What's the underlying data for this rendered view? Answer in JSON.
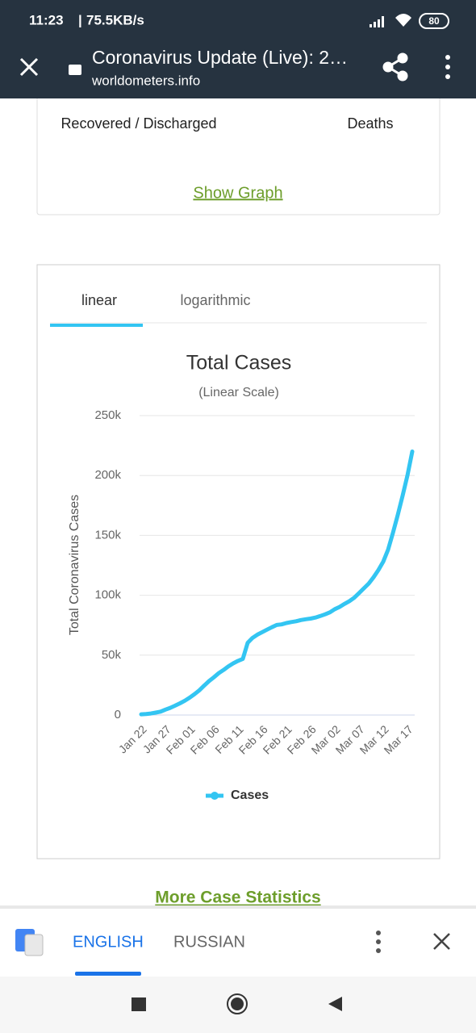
{
  "status_bar": {
    "time": "11:23",
    "speed": "75.5KB/s",
    "battery": "80"
  },
  "browser": {
    "title": "Coronavirus Update (Live): 2…",
    "url": "worldometers.info"
  },
  "stats": {
    "recovered_label": "Recovered / Discharged",
    "deaths_label": "Deaths",
    "show_graph": "Show Graph"
  },
  "tabs": [
    "linear",
    "logarithmic"
  ],
  "chart_data": {
    "type": "line",
    "title": "Total Cases",
    "subtitle": "(Linear Scale)",
    "y_label": "Total Coronavirus Cases",
    "categories": [
      "Jan 22",
      null,
      null,
      null,
      null,
      "Jan 27",
      null,
      null,
      null,
      null,
      "Feb 01",
      null,
      null,
      null,
      null,
      "Feb 06",
      null,
      null,
      null,
      null,
      "Feb 11",
      null,
      null,
      null,
      null,
      "Feb 16",
      null,
      null,
      null,
      null,
      "Feb 21",
      null,
      null,
      null,
      null,
      "Feb 26",
      null,
      null,
      null,
      null,
      "Mar 02",
      null,
      null,
      null,
      null,
      "Mar 07",
      null,
      null,
      null,
      null,
      "Mar 12",
      null,
      null,
      null,
      null,
      "Mar 17",
      null
    ],
    "series": [
      {
        "name": "Cases",
        "color": "#33c5f2",
        "values": [
          580,
          850,
          1300,
          2000,
          2800,
          4500,
          6000,
          7800,
          9800,
          11900,
          14500,
          17400,
          20600,
          24500,
          28300,
          31500,
          34900,
          37600,
          40600,
          43100,
          45200,
          46900,
          60300,
          64400,
          67100,
          69200,
          71300,
          73300,
          75200,
          75700,
          76800,
          77600,
          78300,
          79300,
          80000,
          80500,
          81400,
          82700,
          84100,
          85800,
          88400,
          90300,
          92800,
          95100,
          97900,
          101800,
          105800,
          109800,
          115000,
          121000,
          128000,
          138000,
          152000,
          167000,
          183000,
          200000,
          220000
        ]
      }
    ],
    "ylim": [
      0,
      250000
    ],
    "yticks": [
      0,
      {
        "value": 50000,
        "label": "50k"
      },
      {
        "value": 100000,
        "label": "100k"
      },
      {
        "value": 150000,
        "label": "150k"
      },
      {
        "value": 200000,
        "label": "200k"
      },
      {
        "value": 250000,
        "label": "250k"
      }
    ],
    "grid": true
  },
  "footer": {
    "more_stats": "More Case Statistics"
  },
  "translate": {
    "source": "ENGLISH",
    "target": "RUSSIAN"
  }
}
